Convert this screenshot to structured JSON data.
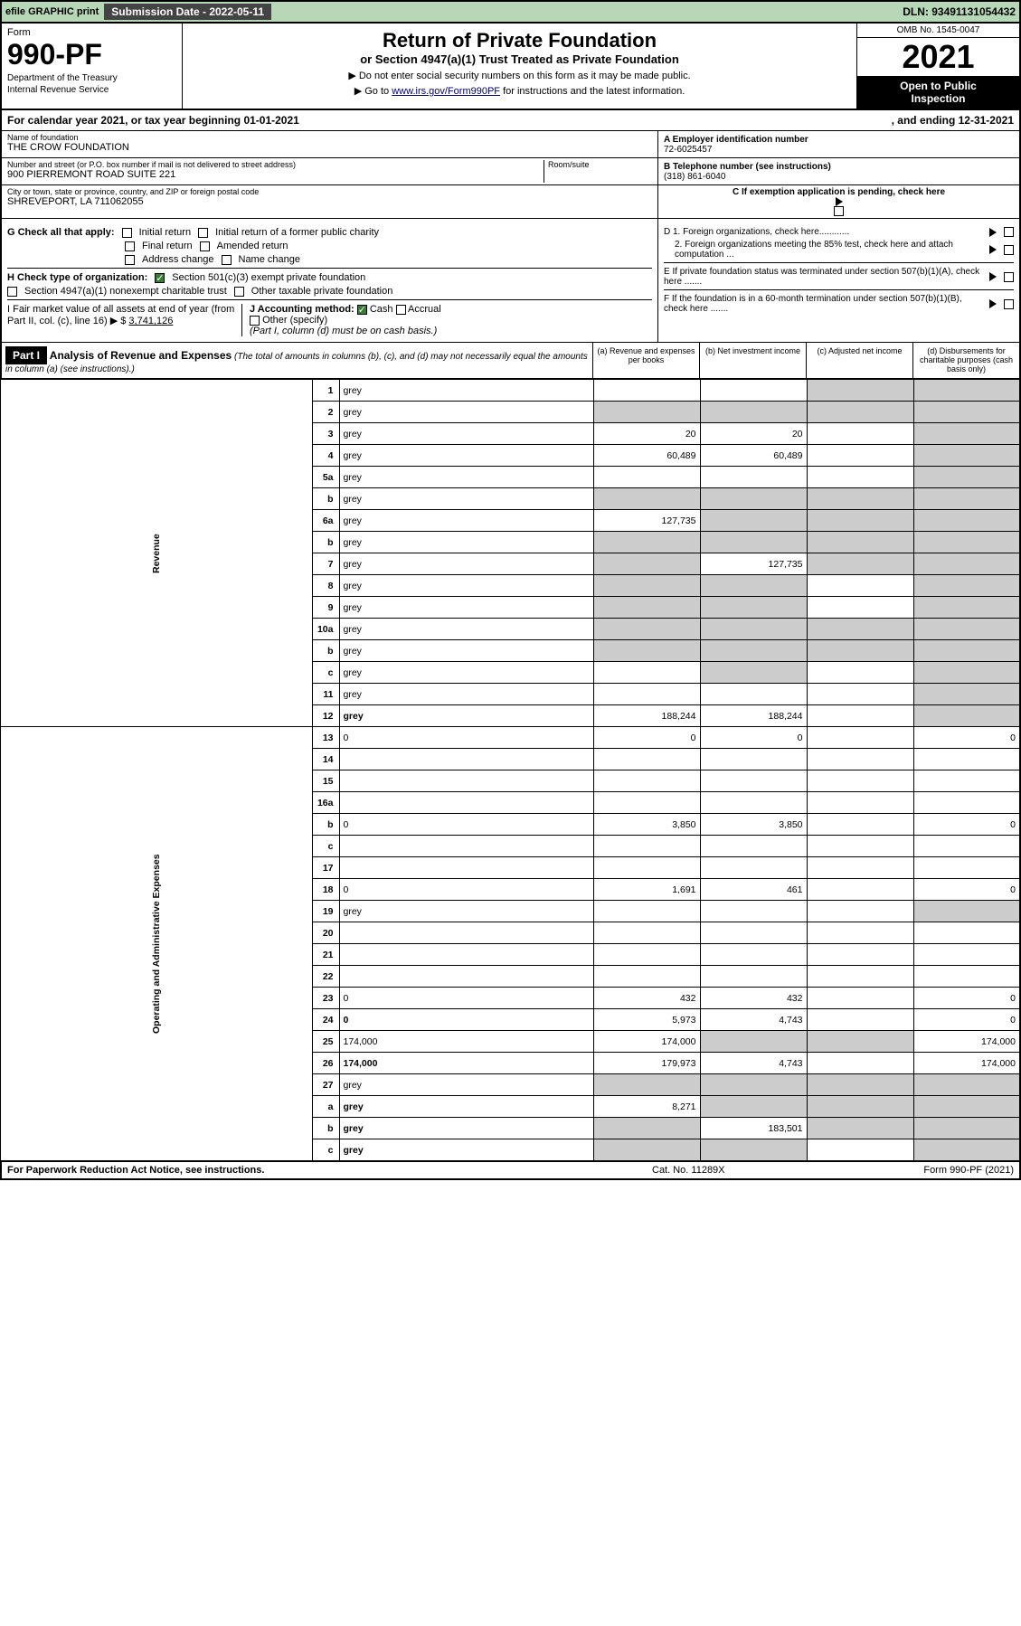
{
  "topbar": {
    "efile": "efile GRAPHIC print",
    "sub_label": "Submission Date - 2022-05-11",
    "dln": "DLN: 93491131054432"
  },
  "header": {
    "form_label": "Form",
    "form_no": "990-PF",
    "dept1": "Department of the Treasury",
    "dept2": "Internal Revenue Service",
    "title": "Return of Private Foundation",
    "subtitle": "or Section 4947(a)(1) Trust Treated as Private Foundation",
    "warn1": "▶ Do not enter social security numbers on this form as it may be made public.",
    "warn2": "▶ Go to ",
    "warn2_link": "www.irs.gov/Form990PF",
    "warn2_after": " for instructions and the latest information.",
    "omb": "OMB No. 1545-0047",
    "year": "2021",
    "inspect1": "Open to Public",
    "inspect2": "Inspection"
  },
  "cal": {
    "text1": "For calendar year 2021, or tax year beginning 01-01-2021",
    "text2": ", and ending 12-31-2021"
  },
  "info": {
    "name_lbl": "Name of foundation",
    "name": "THE CROW FOUNDATION",
    "addr_lbl": "Number and street (or P.O. box number if mail is not delivered to street address)",
    "addr": "900 PIERREMONT ROAD SUITE 221",
    "room_lbl": "Room/suite",
    "city_lbl": "City or town, state or province, country, and ZIP or foreign postal code",
    "city": "SHREVEPORT, LA  711062055",
    "a_lbl": "A Employer identification number",
    "a_val": "72-6025457",
    "b_lbl": "B Telephone number (see instructions)",
    "b_val": "(318) 861-6040",
    "c_lbl": "C If exemption application is pending, check here"
  },
  "checks": {
    "g_lbl": "G Check all that apply:",
    "g1": "Initial return",
    "g2": "Initial return of a former public charity",
    "g3": "Final return",
    "g4": "Amended return",
    "g5": "Address change",
    "g6": "Name change",
    "h_lbl": "H Check type of organization:",
    "h1": "Section 501(c)(3) exempt private foundation",
    "h2": "Section 4947(a)(1) nonexempt charitable trust",
    "h3": "Other taxable private foundation",
    "i_lbl": "I Fair market value of all assets at end of year (from Part II, col. (c), line 16) ▶ $",
    "i_val": "3,741,126",
    "j_lbl": "J Accounting method:",
    "j1": "Cash",
    "j2": "Accrual",
    "j3": "Other (specify)",
    "j_note": "(Part I, column (d) must be on cash basis.)",
    "d1": "D 1. Foreign organizations, check here............",
    "d2": "2. Foreign organizations meeting the 85% test, check here and attach computation ...",
    "e": "E  If private foundation status was terminated under section 507(b)(1)(A), check here .......",
    "f": "F  If the foundation is in a 60-month termination under section 507(b)(1)(B), check here ......."
  },
  "part1": {
    "hdr": "Part I",
    "title": "Analysis of Revenue and Expenses",
    "title_note": " (The total of amounts in columns (b), (c), and (d) may not necessarily equal the amounts in column (a) (see instructions).)",
    "col_a": "(a)   Revenue and expenses per books",
    "col_b": "(b)   Net investment income",
    "col_c": "(c)   Adjusted net income",
    "col_d": "(d)   Disbursements for charitable purposes (cash basis only)"
  },
  "side": {
    "revenue": "Revenue",
    "expenses": "Operating and Administrative Expenses"
  },
  "rows": [
    {
      "n": "1",
      "d": "grey",
      "a": "",
      "b": "",
      "c": "grey"
    },
    {
      "n": "2",
      "d": "grey",
      "a": "grey",
      "b": "grey",
      "c": "grey"
    },
    {
      "n": "3",
      "d": "grey",
      "a": "20",
      "b": "20",
      "c": ""
    },
    {
      "n": "4",
      "d": "grey",
      "a": "60,489",
      "b": "60,489",
      "c": ""
    },
    {
      "n": "5a",
      "d": "grey",
      "a": "",
      "b": "",
      "c": ""
    },
    {
      "n": "b",
      "d": "grey",
      "a": "grey",
      "b": "grey",
      "c": "grey"
    },
    {
      "n": "6a",
      "d": "grey",
      "a": "127,735",
      "b": "grey",
      "c": "grey"
    },
    {
      "n": "b",
      "d": "grey",
      "a": "grey",
      "b": "grey",
      "c": "grey"
    },
    {
      "n": "7",
      "d": "grey",
      "a": "grey",
      "b": "127,735",
      "c": "grey"
    },
    {
      "n": "8",
      "d": "grey",
      "a": "grey",
      "b": "grey",
      "c": ""
    },
    {
      "n": "9",
      "d": "grey",
      "a": "grey",
      "b": "grey",
      "c": ""
    },
    {
      "n": "10a",
      "d": "grey",
      "a": "grey",
      "b": "grey",
      "c": "grey"
    },
    {
      "n": "b",
      "d": "grey",
      "a": "grey",
      "b": "grey",
      "c": "grey"
    },
    {
      "n": "c",
      "d": "grey",
      "a": "",
      "b": "grey",
      "c": ""
    },
    {
      "n": "11",
      "d": "grey",
      "a": "",
      "b": "",
      "c": ""
    },
    {
      "n": "12",
      "d": "grey",
      "a": "188,244",
      "b": "188,244",
      "c": "",
      "bold": true
    },
    {
      "n": "13",
      "d": "0",
      "a": "0",
      "b": "0",
      "c": ""
    },
    {
      "n": "14",
      "d": "",
      "a": "",
      "b": "",
      "c": ""
    },
    {
      "n": "15",
      "d": "",
      "a": "",
      "b": "",
      "c": ""
    },
    {
      "n": "16a",
      "d": "",
      "a": "",
      "b": "",
      "c": ""
    },
    {
      "n": "b",
      "d": "0",
      "a": "3,850",
      "b": "3,850",
      "c": ""
    },
    {
      "n": "c",
      "d": "",
      "a": "",
      "b": "",
      "c": ""
    },
    {
      "n": "17",
      "d": "",
      "a": "",
      "b": "",
      "c": ""
    },
    {
      "n": "18",
      "d": "0",
      "a": "1,691",
      "b": "461",
      "c": ""
    },
    {
      "n": "19",
      "d": "grey",
      "a": "",
      "b": "",
      "c": ""
    },
    {
      "n": "20",
      "d": "",
      "a": "",
      "b": "",
      "c": ""
    },
    {
      "n": "21",
      "d": "",
      "a": "",
      "b": "",
      "c": ""
    },
    {
      "n": "22",
      "d": "",
      "a": "",
      "b": "",
      "c": ""
    },
    {
      "n": "23",
      "d": "0",
      "a": "432",
      "b": "432",
      "c": ""
    },
    {
      "n": "24",
      "d": "0",
      "a": "5,973",
      "b": "4,743",
      "c": "",
      "bold": true
    },
    {
      "n": "25",
      "d": "174,000",
      "a": "174,000",
      "b": "grey",
      "c": "grey"
    },
    {
      "n": "26",
      "d": "174,000",
      "a": "179,973",
      "b": "4,743",
      "c": "",
      "bold": true
    },
    {
      "n": "27",
      "d": "grey",
      "a": "grey",
      "b": "grey",
      "c": "grey"
    },
    {
      "n": "a",
      "d": "grey",
      "a": "8,271",
      "b": "grey",
      "c": "grey",
      "bold": true
    },
    {
      "n": "b",
      "d": "grey",
      "a": "grey",
      "b": "183,501",
      "c": "grey",
      "bold": true
    },
    {
      "n": "c",
      "d": "grey",
      "a": "grey",
      "b": "grey",
      "c": "",
      "bold": true
    }
  ],
  "footer": {
    "left": "For Paperwork Reduction Act Notice, see instructions.",
    "mid": "Cat. No. 11289X",
    "right": "Form 990-PF (2021)"
  }
}
